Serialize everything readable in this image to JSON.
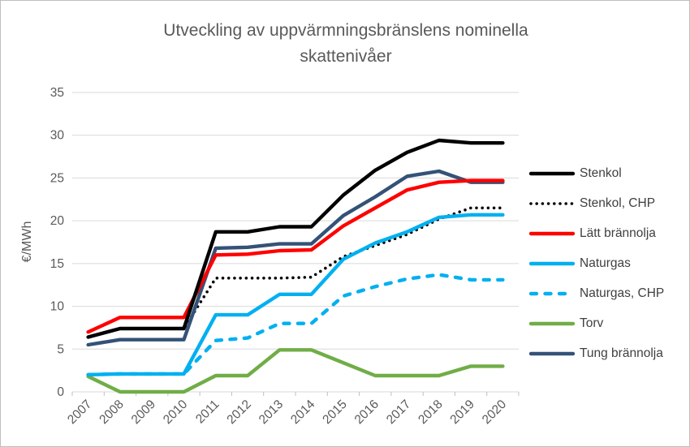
{
  "title": {
    "line1": "Utveckling av uppvärmningsbränslens nominella",
    "line2": "skattenivåer"
  },
  "chart_data": {
    "type": "line",
    "title": "Utveckling av uppvärmningsbränslens nominella skattenivåer",
    "xlabel": "",
    "ylabel": "€/MWh",
    "ylim": [
      0,
      35
    ],
    "ytick_step": 5,
    "y_ticks": [
      0,
      5,
      10,
      15,
      20,
      25,
      30,
      35
    ],
    "grid": true,
    "legend_position": "right",
    "categories": [
      "2007",
      "2008",
      "2009",
      "2010",
      "2011",
      "2012",
      "2013",
      "2014",
      "2015",
      "2016",
      "2017",
      "2018",
      "2019",
      "2020"
    ],
    "series": [
      {
        "name": "Stenkol",
        "color": "#000000",
        "style": "solid",
        "values": [
          6.4,
          7.4,
          7.4,
          7.4,
          18.7,
          18.7,
          19.3,
          19.3,
          23.0,
          25.9,
          28.0,
          29.4,
          29.1,
          29.1
        ]
      },
      {
        "name": "Stenkol, CHP",
        "color": "#000000",
        "style": "dotted",
        "values": [
          6.4,
          7.4,
          7.4,
          7.4,
          13.3,
          13.3,
          13.3,
          13.4,
          15.8,
          17.1,
          18.4,
          20.2,
          21.5,
          21.5
        ]
      },
      {
        "name": "Lätt brännolja",
        "color": "#ff0000",
        "style": "solid",
        "values": [
          7.0,
          8.7,
          8.7,
          8.7,
          16.0,
          16.1,
          16.5,
          16.6,
          19.4,
          21.5,
          23.6,
          24.5,
          24.7,
          24.7
        ]
      },
      {
        "name": "Naturgas",
        "color": "#00b0f0",
        "style": "solid",
        "values": [
          2.0,
          2.1,
          2.1,
          2.1,
          9.0,
          9.0,
          11.4,
          11.4,
          15.5,
          17.4,
          18.7,
          20.4,
          20.7,
          20.7
        ]
      },
      {
        "name": "Naturgas, CHP",
        "color": "#00b0f0",
        "style": "dashed",
        "values": [
          2.0,
          2.1,
          2.1,
          2.1,
          6.0,
          6.3,
          8.0,
          8.0,
          11.2,
          12.3,
          13.2,
          13.7,
          13.1,
          13.1
        ]
      },
      {
        "name": "Torv",
        "color": "#70ad47",
        "style": "solid",
        "values": [
          1.8,
          0.0,
          0.0,
          0.0,
          1.9,
          1.9,
          4.9,
          4.9,
          3.4,
          1.9,
          1.9,
          1.9,
          3.0,
          3.0
        ]
      },
      {
        "name": "Tung brännolja",
        "color": "#345278",
        "style": "solid",
        "values": [
          5.5,
          6.1,
          6.1,
          6.1,
          16.8,
          16.9,
          17.3,
          17.3,
          20.6,
          22.8,
          25.2,
          25.8,
          24.5,
          24.5
        ]
      }
    ],
    "draw_order": [
      "Naturgas, CHP",
      "Stenkol, CHP",
      "Torv",
      "Naturgas",
      "Tung brännolja",
      "Lätt brännolja",
      "Stenkol"
    ],
    "colors": {
      "title_text": "#595959",
      "axis_text": "#595959",
      "legend_text": "#404040",
      "gridline": "#d9d9d9",
      "tick_mark": "#bfbfbf",
      "frame_border": "#bfbfbf"
    }
  }
}
